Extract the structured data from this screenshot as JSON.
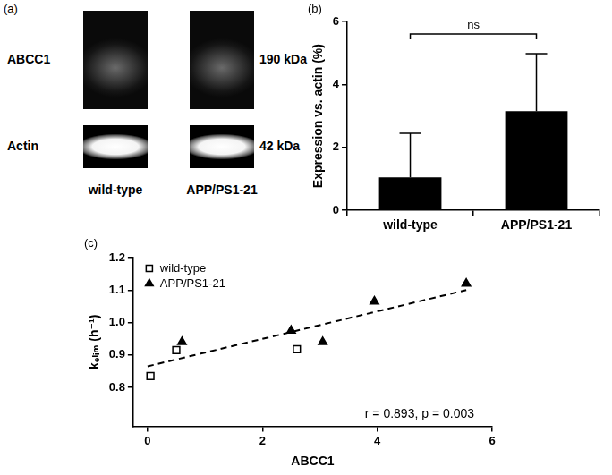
{
  "blot": {
    "label": "(a)",
    "rows": [
      {
        "name": "ABCC1",
        "size": "190 kDa"
      },
      {
        "name": "Actin",
        "size": "42 kDa"
      }
    ],
    "lanes": [
      "wild-type",
      "APP/PS1-21"
    ]
  },
  "chart_data": [
    {
      "type": "bar",
      "panel_label": "(b)",
      "categories": [
        "wild-type",
        "APP/PS1-21"
      ],
      "values": [
        1.05,
        3.15
      ],
      "errors": [
        1.4,
        1.83
      ],
      "color": "#000000",
      "y_label": "Expression vs. actin (%)",
      "ylim": [
        0,
        6
      ],
      "yticks": [
        0,
        2,
        4,
        6
      ],
      "grid": false,
      "significance": {
        "text": "ns",
        "y": 5.6,
        "between": [
          "wild-type",
          "APP/PS1-21"
        ]
      }
    },
    {
      "type": "scatter",
      "panel_label": "(c)",
      "x_label": "ABCC1",
      "y_label": "kₑₗᵢₘ (h⁻¹)",
      "series": [
        {
          "name": "wild-type",
          "color": "#000000",
          "marker": "open square",
          "x": [
            0.05,
            0.5,
            2.6
          ],
          "values": [
            0.835,
            0.915,
            0.918
          ]
        },
        {
          "name": "APP/PS1-21",
          "color": "#000000",
          "marker": "triangle",
          "x": [
            0.6,
            2.5,
            3.05,
            3.95,
            5.55
          ],
          "values": [
            0.94,
            0.975,
            0.94,
            1.065,
            1.12
          ]
        }
      ],
      "fit": {
        "x": [
          0,
          5.55
        ],
        "values": [
          0.865,
          1.1
        ],
        "line_style": "dashed"
      },
      "annotation": "r = 0.893, p = 0.003",
      "xlim": [
        -0.25,
        6
      ],
      "xticks": [
        0,
        2,
        4,
        6
      ],
      "ylim": [
        0.68,
        1.2
      ],
      "yticks": [
        0.8,
        0.9,
        {
          "value": 1,
          "label": "1.0"
        },
        1.1,
        1.2
      ],
      "legend": "upper left",
      "grid": false
    }
  ]
}
